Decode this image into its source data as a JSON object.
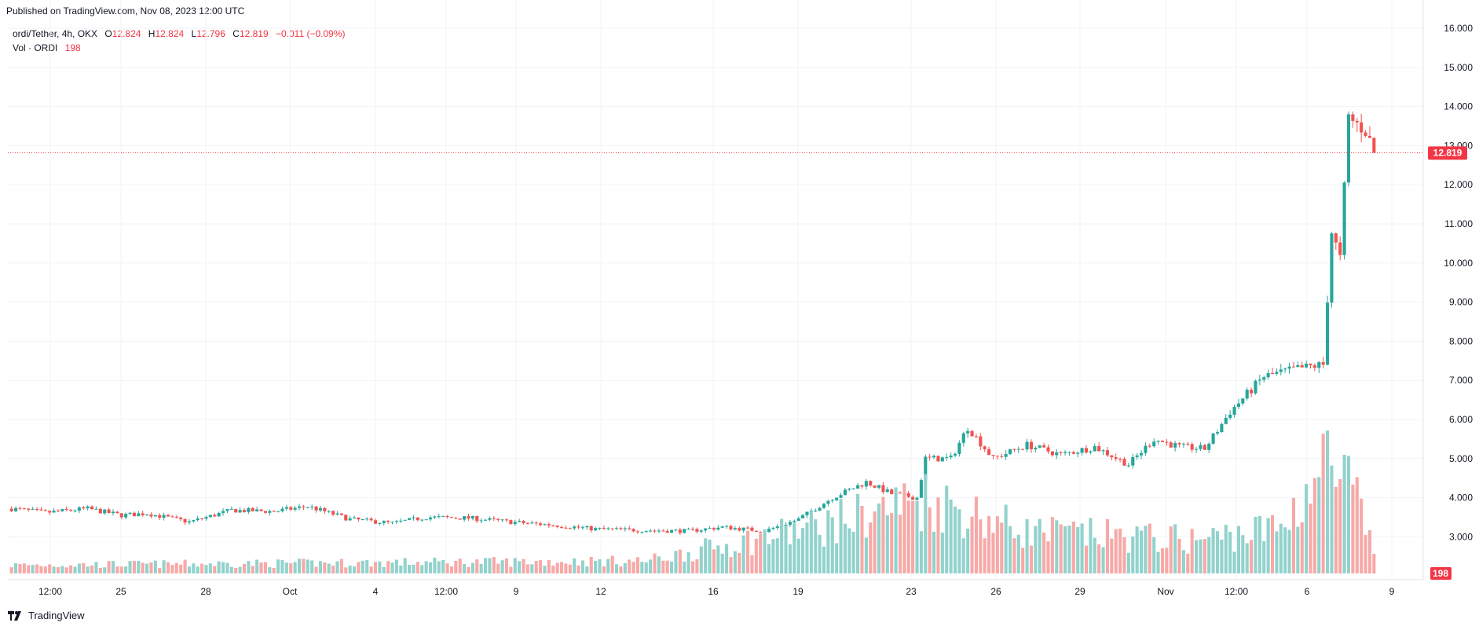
{
  "header": {
    "published": "Published on TradingView.com, Nov 08, 2023 12:00 UTC"
  },
  "legend": {
    "symbol": "ordi/Tether, 4h, OKX",
    "o_label": "O",
    "o_value": "12.824",
    "h_label": "H",
    "h_value": "12.824",
    "l_label": "L",
    "l_value": "12.796",
    "c_label": "C",
    "c_value": "12.819",
    "change": "−0.011 (−0.09%)",
    "vol_label": "Vol · ORDI",
    "vol_value": "198"
  },
  "footer": {
    "brand": "TradingView"
  },
  "colors": {
    "up": "#26a69a",
    "down": "#ef5350",
    "up_vol": "#92d2cc",
    "down_vol": "#f7a9a7",
    "grid": "#f0f3fa",
    "badge": "#f23645"
  },
  "chart_data": {
    "type": "candlestick",
    "title": "ordi/Tether, 4h, OKX",
    "y_ticks": [
      "16.000",
      "15.000",
      "14.000",
      "13.000",
      "12.000",
      "11.000",
      "10.000",
      "9.000",
      "8.000",
      "7.000",
      "6.000",
      "5.000",
      "4.000",
      "3.000"
    ],
    "ylim": [
      2.5,
      16.3
    ],
    "x_ticks": [
      "12:00",
      "25",
      "28",
      "Oct",
      "4",
      "12:00",
      "9",
      "12",
      "16",
      "19",
      "23",
      "26",
      "29",
      "Nov",
      "12:00",
      "6",
      "9"
    ],
    "last_price": "12.819",
    "last_volume": "198",
    "grid": true,
    "keyframes": [
      [
        0,
        3.72
      ],
      [
        8,
        3.62
      ],
      [
        18,
        3.72
      ],
      [
        26,
        3.55
      ],
      [
        32,
        3.6
      ],
      [
        42,
        3.38
      ],
      [
        52,
        3.68
      ],
      [
        62,
        3.65
      ],
      [
        70,
        3.78
      ],
      [
        80,
        3.45
      ],
      [
        90,
        3.35
      ],
      [
        98,
        3.5
      ],
      [
        108,
        3.48
      ],
      [
        118,
        3.38
      ],
      [
        128,
        3.3
      ],
      [
        138,
        3.2
      ],
      [
        148,
        3.17
      ],
      [
        160,
        3.15
      ],
      [
        168,
        3.25
      ],
      [
        178,
        3.15
      ],
      [
        186,
        3.45
      ],
      [
        194,
        4.0
      ],
      [
        202,
        4.4
      ],
      [
        208,
        4.1
      ],
      [
        214,
        4.0
      ],
      [
        216,
        5.0
      ],
      [
        222,
        5.0
      ],
      [
        226,
        5.8
      ],
      [
        232,
        5.0
      ],
      [
        240,
        5.35
      ],
      [
        248,
        5.1
      ],
      [
        256,
        5.3
      ],
      [
        264,
        4.85
      ],
      [
        270,
        5.5
      ],
      [
        276,
        5.3
      ],
      [
        282,
        5.25
      ],
      [
        288,
        6.2
      ],
      [
        296,
        7.1
      ],
      [
        304,
        7.3
      ],
      [
        310,
        7.4
      ],
      [
        312,
        10.8
      ],
      [
        314,
        10.1
      ],
      [
        316,
        13.7
      ],
      [
        320,
        13.4
      ],
      [
        322,
        12.819
      ]
    ],
    "volume_keyframes": [
      [
        0,
        0.1
      ],
      [
        150,
        0.15
      ],
      [
        190,
        0.55
      ],
      [
        194,
        0.6
      ],
      [
        216,
        0.9
      ],
      [
        240,
        0.5
      ],
      [
        280,
        0.4
      ],
      [
        300,
        0.55
      ],
      [
        311,
        1.35
      ],
      [
        314,
        1.05
      ],
      [
        316,
        1.1
      ],
      [
        322,
        0.25
      ]
    ]
  }
}
